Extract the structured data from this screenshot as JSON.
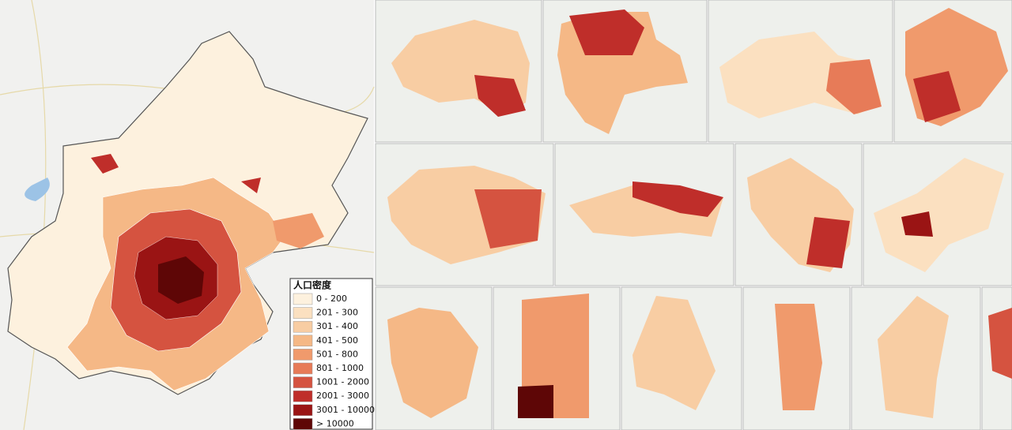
{
  "legend": {
    "title": "人口密度",
    "items": [
      {
        "label": "0 - 200",
        "color": "#fdf1de"
      },
      {
        "label": "201 - 300",
        "color": "#fbe0c0"
      },
      {
        "label": "301 - 400",
        "color": "#f8cda3"
      },
      {
        "label": "401 - 500",
        "color": "#f5b886"
      },
      {
        "label": "501 - 800",
        "color": "#f09a6c"
      },
      {
        "label": "801 - 1000",
        "color": "#e77b58"
      },
      {
        "label": "1001 - 2000",
        "color": "#d55340"
      },
      {
        "label": "2001 - 3000",
        "color": "#bf2e2a"
      },
      {
        "label": "3001 - 10000",
        "color": "#9a1414"
      },
      {
        "label": "> 10000",
        "color": "#5e0606"
      }
    ]
  }
}
